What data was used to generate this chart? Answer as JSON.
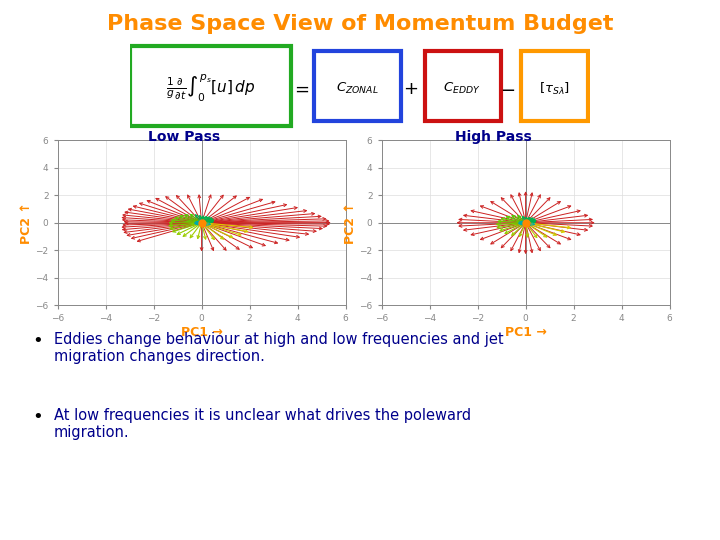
{
  "title": "Phase Space View of Momentum Budget",
  "title_color": "#FF8C00",
  "title_fontsize": 16,
  "background_color": "#FFFFFF",
  "bullet1": "Eddies change behaviour at high and low frequencies and jet\nmigration changes direction.",
  "bullet2": "At low frequencies it is unclear what drives the poleward\nmigration.",
  "bullet_color": "#00008B",
  "bullet_fontsize": 10.5,
  "left_label": "Low Pass",
  "right_label": "High Pass",
  "label_color": "#00008B",
  "label_fontsize": 10,
  "pc1_label": "PC1 →",
  "pc2_label": "PC2 ↑",
  "axis_label_color": "#FF8C00",
  "axis_label_fontsize": 9,
  "grid_color": "#DDDDDD",
  "axes_color": "#888888",
  "tick_color": "#888888",
  "box_colors": {
    "green": "#22AA22",
    "blue": "#2244DD",
    "red": "#CC1111",
    "orange": "#FF9900"
  }
}
